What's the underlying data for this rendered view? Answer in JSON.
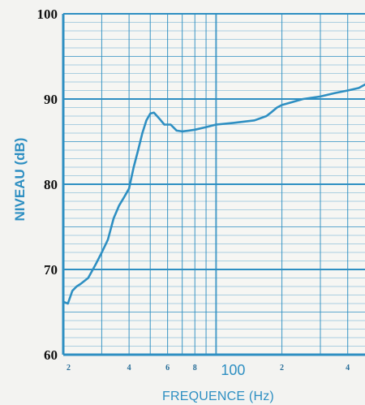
{
  "chart_data": {
    "type": "line",
    "xlabel": "FREQUENCE (Hz)",
    "ylabel": "NIVEAU (dB)",
    "x_scale": "log",
    "xlim": [
      20,
      480
    ],
    "ylim": [
      60,
      100
    ],
    "y_ticks": [
      "60",
      "70",
      "80",
      "90",
      "100"
    ],
    "x_ticks": [
      {
        "value": 20,
        "label": "2"
      },
      {
        "value": 40,
        "label": "4"
      },
      {
        "value": 60,
        "label": "6"
      },
      {
        "value": 80,
        "label": "8"
      },
      {
        "value": 100,
        "label": "100"
      },
      {
        "value": 200,
        "label": "2"
      },
      {
        "value": 400,
        "label": "4"
      }
    ],
    "grid": true,
    "series": [
      {
        "color": "#2e8fc2",
        "x": [
          20,
          21,
          22,
          23,
          24,
          26,
          28,
          30,
          32,
          34,
          36,
          38,
          40,
          42,
          44,
          46,
          48,
          50,
          52,
          55,
          58,
          62,
          66,
          70,
          75,
          80,
          90,
          100,
          120,
          150,
          170,
          180,
          190,
          200,
          220,
          250,
          300,
          350,
          400,
          450,
          480
        ],
        "y": [
          66.2,
          66.0,
          67.5,
          68.0,
          68.3,
          69.0,
          70.5,
          72.0,
          73.5,
          76.0,
          77.5,
          78.5,
          79.5,
          82.0,
          84.0,
          86.0,
          87.5,
          88.3,
          88.4,
          87.7,
          87.0,
          87.0,
          86.3,
          86.2,
          86.3,
          86.4,
          86.7,
          87.0,
          87.2,
          87.5,
          88.0,
          88.5,
          89.0,
          89.3,
          89.6,
          90.0,
          90.3,
          90.7,
          91.0,
          91.3,
          91.7
        ]
      }
    ]
  }
}
